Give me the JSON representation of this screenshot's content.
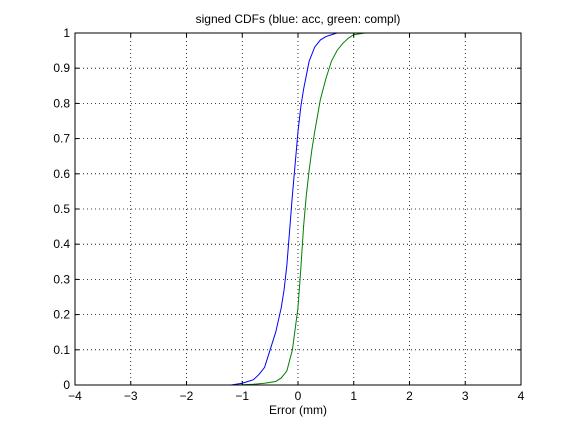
{
  "chart_data": {
    "type": "line",
    "title": "signed CDFs (blue: acc, green: compl)",
    "xlabel": "Error (mm)",
    "ylabel": "",
    "xlim": [
      -4,
      4
    ],
    "ylim": [
      0,
      1
    ],
    "xticks": [
      -4,
      -3,
      -2,
      -1,
      0,
      1,
      2,
      3,
      4
    ],
    "yticks": [
      0,
      0.1,
      0.2,
      0.3,
      0.4,
      0.5,
      0.6,
      0.7,
      0.8,
      0.9,
      1
    ],
    "xtick_labels": [
      "−4",
      "−3",
      "−2",
      "−1",
      "0",
      "1",
      "2",
      "3",
      "4"
    ],
    "ytick_labels": [
      "0",
      "0.1",
      "0.2",
      "0.3",
      "0.4",
      "0.5",
      "0.6",
      "0.7",
      "0.8",
      "0.9",
      "1"
    ],
    "grid": true,
    "series": [
      {
        "color": "#0000ff",
        "x": [
          -4,
          -1.2,
          -1.0,
          -0.9,
          -0.8,
          -0.7,
          -0.6,
          -0.5,
          -0.4,
          -0.3,
          -0.25,
          -0.2,
          -0.15,
          -0.1,
          -0.05,
          0.0,
          0.05,
          0.1,
          0.15,
          0.2,
          0.3,
          0.4,
          0.5,
          0.6,
          0.7,
          1.2,
          4
        ],
        "y": [
          0,
          0,
          0.005,
          0.01,
          0.015,
          0.03,
          0.05,
          0.1,
          0.15,
          0.22,
          0.27,
          0.34,
          0.44,
          0.54,
          0.63,
          0.72,
          0.79,
          0.84,
          0.88,
          0.92,
          0.96,
          0.98,
          0.99,
          0.995,
          1.0,
          1.0,
          1.0
        ]
      },
      {
        "color": "#008000",
        "x": [
          -4,
          -1.1,
          -0.8,
          -0.6,
          -0.4,
          -0.3,
          -0.2,
          -0.1,
          -0.05,
          0.0,
          0.05,
          0.1,
          0.15,
          0.2,
          0.25,
          0.3,
          0.4,
          0.5,
          0.6,
          0.7,
          0.8,
          0.9,
          1.0,
          1.2,
          4
        ],
        "y": [
          0,
          0,
          0.002,
          0.005,
          0.01,
          0.02,
          0.04,
          0.1,
          0.16,
          0.22,
          0.33,
          0.45,
          0.54,
          0.61,
          0.67,
          0.72,
          0.81,
          0.87,
          0.92,
          0.95,
          0.97,
          0.985,
          0.995,
          1.0,
          1.0
        ]
      }
    ]
  }
}
